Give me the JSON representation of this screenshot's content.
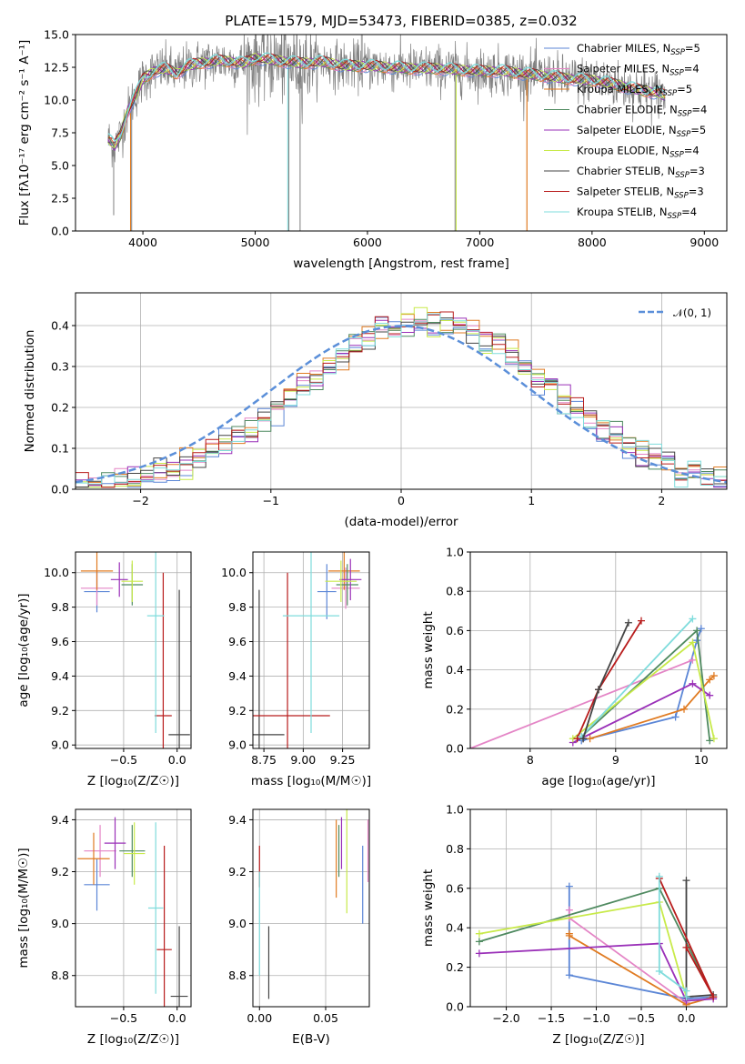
{
  "colors": {
    "chabrier_miles": "#5b86d6",
    "salpeter_miles": "#e485c6",
    "kroupa_miles": "#e07b22",
    "chabrier_elodie": "#4f8a60",
    "salpeter_elodie": "#9a30b8",
    "kroupa_elodie": "#c8ea4a",
    "chabrier_stelib": "#444444",
    "salpeter_stelib": "#b81c1c",
    "kroupa_stelib": "#7fdcdc",
    "data": "#808080"
  },
  "chart_data": [
    {
      "id": "spectrum",
      "type": "line",
      "title": "PLATE=1579, MJD=53473, FIBERID=0385, z=0.032",
      "xlabel": "wavelength [Angstrom, rest frame]",
      "ylabel": "Flux [fλ10⁻¹⁷ erg cm⁻² s⁻¹ A⁻¹]",
      "xlim": [
        3400,
        9200
      ],
      "ylim": [
        0,
        15
      ],
      "xticks": [
        4000,
        5000,
        6000,
        7000,
        8000,
        9000
      ],
      "yticks": [
        0.0,
        2.5,
        5.0,
        7.5,
        10.0,
        12.5,
        15.0
      ],
      "xrange_data": [
        3690,
        8650
      ],
      "continuum": {
        "x": [
          3690,
          3750,
          3800,
          3850,
          3900,
          3950,
          4000,
          4100,
          4200,
          4300,
          4400,
          4500,
          4600,
          4700,
          4800,
          4900,
          5000,
          5200,
          5400,
          5600,
          5800,
          6000,
          6200,
          6400,
          6600,
          6800,
          7000,
          7200,
          7400,
          7600,
          7800,
          8000,
          8200,
          8400,
          8600,
          8650
        ],
        "y": [
          7.0,
          6.5,
          7.3,
          8.8,
          9.8,
          10.6,
          11.6,
          12.2,
          12.4,
          12.0,
          12.6,
          12.8,
          12.9,
          13.0,
          12.9,
          12.8,
          13.2,
          13.0,
          12.8,
          12.9,
          12.6,
          12.6,
          12.5,
          12.4,
          12.4,
          12.3,
          12.2,
          12.2,
          12.0,
          11.8,
          11.6,
          11.5,
          11.2,
          10.8,
          10.5,
          10.3
        ]
      },
      "legend": [
        "Chabrier MILES, N_SSP=5",
        "Salpeter MILES, N_SSP=4",
        "Kroupa MILES, N_SSP=5",
        "Chabrier ELODIE, N_SSP=4",
        "Salpeter ELODIE, N_SSP=5",
        "Kroupa ELODIE, N_SSP=4",
        "Chabrier STELIB, N_SSP=3",
        "Salpeter STELIB, N_SSP=3",
        "Kroupa STELIB, N_SSP=4"
      ],
      "legend_placement": "upper-right",
      "series_keys": [
        "chabrier_miles",
        "salpeter_miles",
        "kroupa_miles",
        "chabrier_elodie",
        "salpeter_elodie",
        "kroupa_elodie",
        "chabrier_stelib",
        "salpeter_stelib",
        "kroupa_stelib"
      ]
    },
    {
      "id": "residuals",
      "type": "histogram",
      "xlabel": "(data-model)/error",
      "ylabel": "Normed distribution",
      "xlim": [
        -2.5,
        2.5
      ],
      "ylim": [
        0,
        0.48
      ],
      "xticks": [
        -2,
        -1,
        0,
        1,
        2
      ],
      "yticks": [
        0.0,
        0.1,
        0.2,
        0.3,
        0.4
      ],
      "bin_width": 0.1,
      "legend": [
        "𝒩(0, 1)"
      ],
      "legend_placement": "upper-right"
    },
    {
      "id": "age_vs_Z",
      "type": "errorbar",
      "xlabel": "Z [log₁₀(Z/Z☉)]",
      "ylabel": "age  [log₁₀(age/yr)]",
      "xlim": [
        -0.95,
        0.13
      ],
      "ylim": [
        8.98,
        10.12
      ],
      "xticks": [
        -0.5,
        0.0
      ],
      "yticks": [
        9.0,
        9.2,
        9.4,
        9.6,
        9.8,
        10.0
      ],
      "points": [
        {
          "key": "chabrier_miles",
          "x": -0.75,
          "xerr": 0.12,
          "y": 9.89,
          "yerr": 0.12
        },
        {
          "key": "salpeter_miles",
          "x": -0.75,
          "xerr": 0.15,
          "y": 9.91,
          "yerr": 0.1
        },
        {
          "key": "kroupa_miles",
          "x": -0.75,
          "xerr": 0.15,
          "y": 10.01,
          "yerr": 0.11
        },
        {
          "key": "chabrier_elodie",
          "x": -0.42,
          "xerr": 0.1,
          "y": 9.93,
          "yerr": 0.12
        },
        {
          "key": "salpeter_elodie",
          "x": -0.54,
          "xerr": 0.08,
          "y": 9.96,
          "yerr": 0.1
        },
        {
          "key": "kroupa_elodie",
          "x": -0.42,
          "xerr": 0.1,
          "y": 9.95,
          "yerr": 0.12
        },
        {
          "key": "chabrier_stelib",
          "x": 0.02,
          "xerr": 0.1,
          "y": 9.06,
          "yerr": 0.84
        },
        {
          "key": "salpeter_stelib",
          "x": -0.13,
          "xerr": 0.08,
          "y": 9.17,
          "yerr": 0.83
        },
        {
          "key": "kroupa_stelib",
          "x": -0.2,
          "xerr": 0.08,
          "y": 9.75,
          "yerr": 0.68
        }
      ]
    },
    {
      "id": "age_vs_mass",
      "type": "errorbar",
      "xlabel": "mass [log₁₀(M/M☉)]",
      "xlim": [
        8.68,
        9.42
      ],
      "ylim": [
        8.98,
        10.12
      ],
      "xticks": [
        8.75,
        9.0,
        9.25
      ],
      "yticks": [
        9.0,
        9.2,
        9.4,
        9.6,
        9.8,
        10.0
      ],
      "points": [
        {
          "key": "chabrier_miles",
          "x": 9.15,
          "xerr": 0.06,
          "y": 9.89,
          "yerr": 0.16
        },
        {
          "key": "salpeter_miles",
          "x": 9.27,
          "xerr": 0.09,
          "y": 9.91,
          "yerr": 0.12
        },
        {
          "key": "kroupa_miles",
          "x": 9.26,
          "xerr": 0.1,
          "y": 10.01,
          "yerr": 0.11
        },
        {
          "key": "chabrier_elodie",
          "x": 9.28,
          "xerr": 0.07,
          "y": 9.93,
          "yerr": 0.12
        },
        {
          "key": "salpeter_elodie",
          "x": 9.3,
          "xerr": 0.07,
          "y": 9.96,
          "yerr": 0.12
        },
        {
          "key": "kroupa_elodie",
          "x": 9.24,
          "xerr": 0.1,
          "y": 9.95,
          "yerr": 0.12
        },
        {
          "key": "chabrier_stelib",
          "x": 8.72,
          "xerr": 0.16,
          "y": 9.06,
          "yerr": 0.84
        },
        {
          "key": "salpeter_stelib",
          "x": 8.9,
          "xerr": 0.27,
          "y": 9.17,
          "yerr": 0.83
        },
        {
          "key": "kroupa_stelib",
          "x": 9.05,
          "xerr": 0.18,
          "y": 9.75,
          "yerr": 0.68
        }
      ]
    },
    {
      "id": "weight_vs_age",
      "type": "line",
      "xlabel": "age  [log₁₀(age/yr)]",
      "ylabel": "mass weight",
      "xlim": [
        7.3,
        10.3
      ],
      "ylim": [
        0,
        1
      ],
      "xticks": [
        8,
        9,
        10
      ],
      "yticks": [
        0.0,
        0.2,
        0.4,
        0.6,
        0.8,
        1.0
      ],
      "series": [
        {
          "key": "chabrier_miles",
          "x": [
            8.6,
            9.7,
            9.95,
            10.0
          ],
          "y": [
            0.04,
            0.16,
            0.55,
            0.61
          ]
        },
        {
          "key": "salpeter_miles",
          "x": [
            7.3,
            9.9
          ],
          "y": [
            0.0,
            0.45
          ]
        },
        {
          "key": "kroupa_miles",
          "x": [
            8.7,
            9.8,
            10.1,
            10.15
          ],
          "y": [
            0.05,
            0.2,
            0.35,
            0.37
          ]
        },
        {
          "key": "chabrier_elodie",
          "x": [
            8.6,
            9.95,
            10.1
          ],
          "y": [
            0.06,
            0.6,
            0.04
          ]
        },
        {
          "key": "salpeter_elodie",
          "x": [
            8.5,
            9.9,
            10.1
          ],
          "y": [
            0.03,
            0.33,
            0.27
          ]
        },
        {
          "key": "kroupa_elodie",
          "x": [
            8.5,
            9.9,
            10.15
          ],
          "y": [
            0.05,
            0.54,
            0.05
          ]
        },
        {
          "key": "chabrier_stelib",
          "x": 8.62,
          "y": 0.05
        },
        {
          "key": "salpeter_stelib",
          "x": [
            8.55,
            8.8,
            9.3
          ],
          "y": [
            0.05,
            0.3,
            0.65
          ]
        },
        {
          "key": "kroupa_stelib",
          "x": [
            8.6,
            9.9
          ],
          "y": [
            0.06,
            0.66
          ]
        }
      ],
      "extra_lines": [
        {
          "key": "chabrier_stelib",
          "x": [
            8.62,
            8.8,
            9.15
          ],
          "y": [
            0.05,
            0.3,
            0.64
          ]
        }
      ]
    },
    {
      "id": "mass_vs_Z",
      "type": "errorbar",
      "xlabel": "Z [log₁₀(Z/Z☉)]",
      "ylabel": "mass [log₁₀(M/M☉)]",
      "xlim": [
        -0.95,
        0.13
      ],
      "ylim": [
        8.68,
        9.44
      ],
      "xticks": [
        -0.5,
        0.0
      ],
      "yticks": [
        8.8,
        9.0,
        9.2,
        9.4
      ],
      "points": [
        {
          "key": "chabrier_miles",
          "x": -0.75,
          "xerr": 0.12,
          "y": 9.15,
          "yerr": 0.1
        },
        {
          "key": "salpeter_miles",
          "x": -0.72,
          "xerr": 0.15,
          "y": 9.28,
          "yerr": 0.1
        },
        {
          "key": "kroupa_miles",
          "x": -0.78,
          "xerr": 0.15,
          "y": 9.25,
          "yerr": 0.1
        },
        {
          "key": "chabrier_elodie",
          "x": -0.42,
          "xerr": 0.12,
          "y": 9.28,
          "yerr": 0.1
        },
        {
          "key": "salpeter_elodie",
          "x": -0.58,
          "xerr": 0.1,
          "y": 9.31,
          "yerr": 0.1
        },
        {
          "key": "kroupa_elodie",
          "x": -0.4,
          "xerr": 0.1,
          "y": 9.27,
          "yerr": 0.12
        },
        {
          "key": "chabrier_stelib",
          "x": 0.02,
          "xerr": 0.08,
          "y": 8.72,
          "yerr": 0.27
        },
        {
          "key": "salpeter_stelib",
          "x": -0.12,
          "xerr": 0.07,
          "y": 8.9,
          "yerr": 0.4
        },
        {
          "key": "kroupa_stelib",
          "x": -0.2,
          "xerr": 0.07,
          "y": 9.06,
          "yerr": 0.33
        }
      ]
    },
    {
      "id": "mass_vs_ebv",
      "type": "errorbar",
      "xlabel": "E(B-V)",
      "xlim": [
        -0.005,
        0.083
      ],
      "ylim": [
        8.68,
        9.44
      ],
      "xticks": [
        0.0,
        0.05
      ],
      "yticks": [
        8.8,
        9.0,
        9.2,
        9.4
      ],
      "points": [
        {
          "key": "chabrier_miles",
          "x": 0.078,
          "y": 9.15,
          "yerr": 0.15
        },
        {
          "key": "salpeter_miles",
          "x": 0.082,
          "y": 9.28,
          "yerr": 0.12
        },
        {
          "key": "kroupa_miles",
          "x": 0.058,
          "y": 9.25,
          "yerr": 0.15
        },
        {
          "key": "chabrier_elodie",
          "x": 0.06,
          "y": 9.28,
          "yerr": 0.1
        },
        {
          "key": "salpeter_elodie",
          "x": 0.062,
          "y": 9.31,
          "yerr": 0.1
        },
        {
          "key": "kroupa_elodie",
          "x": 0.066,
          "y": 9.27,
          "yerr": 0.23
        },
        {
          "key": "chabrier_stelib",
          "x": 0.007,
          "y": 8.85,
          "yerr": 0.14
        },
        {
          "key": "salpeter_stelib",
          "x": 0.0,
          "y": 9.22,
          "yerr": 0.08
        },
        {
          "key": "kroupa_stelib",
          "x": 0.0,
          "y": 9.0,
          "yerr": 0.2
        }
      ]
    },
    {
      "id": "weight_vs_Z",
      "type": "line",
      "xlabel": "Z [log₁₀(Z/Z☉)]",
      "ylabel": "mass weight",
      "xlim": [
        -2.4,
        0.45
      ],
      "ylim": [
        0,
        1
      ],
      "xticks": [
        -2.0,
        -1.5,
        -1.0,
        -0.5,
        0.0
      ],
      "yticks": [
        0.0,
        0.2,
        0.4,
        0.6,
        0.8,
        1.0
      ],
      "series": [
        {
          "key": "chabrier_miles",
          "x": [
            -1.3,
            -1.3,
            0.0,
            0.3
          ],
          "y": [
            0.61,
            0.16,
            0.04,
            0.05
          ]
        },
        {
          "key": "salpeter_miles",
          "x": [
            -1.3,
            -1.3,
            0.0
          ],
          "y": [
            0.49,
            0.45,
            0.02
          ]
        },
        {
          "key": "kroupa_miles",
          "x": [
            -1.3,
            -1.3,
            0.0,
            0.3
          ],
          "y": [
            0.37,
            0.36,
            0.01,
            0.05
          ]
        },
        {
          "key": "chabrier_elodie",
          "x": [
            -2.3,
            -0.3,
            0.3
          ],
          "y": [
            0.33,
            0.6,
            0.05
          ]
        },
        {
          "key": "salpeter_elodie",
          "x": [
            -2.3,
            -0.3,
            0.0,
            0.3
          ],
          "y": [
            0.27,
            0.32,
            0.03,
            0.04
          ]
        },
        {
          "key": "kroupa_elodie",
          "x": [
            -2.3,
            -0.3,
            0.0
          ],
          "y": [
            0.37,
            0.53,
            0.05
          ]
        },
        {
          "key": "chabrier_stelib",
          "x": [
            0.0,
            0.0,
            0.3
          ],
          "y": [
            0.64,
            0.05,
            0.06
          ]
        },
        {
          "key": "salpeter_stelib",
          "x": [
            0.0,
            0.3,
            -0.3
          ],
          "y": [
            0.3,
            0.05,
            0.65
          ]
        },
        {
          "key": "kroupa_stelib",
          "x": [
            -0.3,
            -0.3,
            0.0,
            0.0
          ],
          "y": [
            0.66,
            0.18,
            0.08,
            0.05
          ]
        }
      ]
    }
  ]
}
